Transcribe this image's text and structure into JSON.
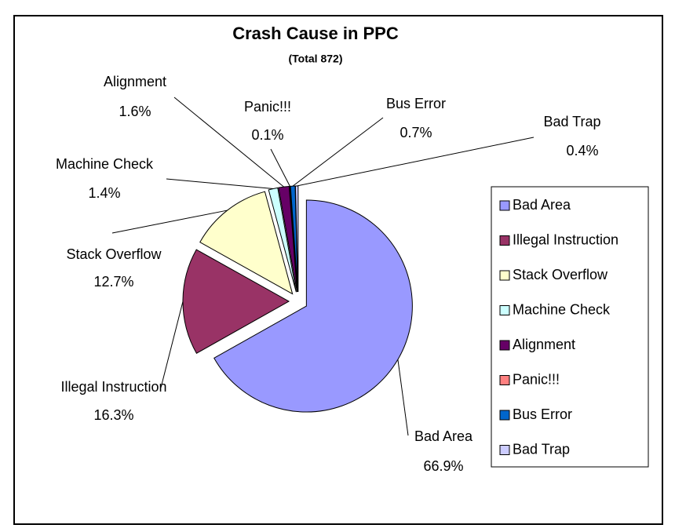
{
  "chart_data": {
    "type": "pie",
    "title": "Crash Cause in PPC",
    "subtitle": "(Total 872)",
    "categories": [
      "Bad Area",
      "Illegal Instruction",
      "Stack Overflow",
      "Machine Check",
      "Alignment",
      "Panic!!!",
      "Bus Error",
      "Bad Trap"
    ],
    "values": [
      66.9,
      16.3,
      12.7,
      1.4,
      1.6,
      0.1,
      0.7,
      0.4
    ],
    "value_labels": [
      "66.9%",
      "16.3%",
      "12.7%",
      "1.4%",
      "1.6%",
      "0.1%",
      "0.7%",
      "0.4%"
    ],
    "colors": [
      "#9999ff",
      "#993366",
      "#ffffcc",
      "#ccffff",
      "#660066",
      "#ff8080",
      "#0066cc",
      "#ccccff"
    ],
    "legend": "right"
  }
}
